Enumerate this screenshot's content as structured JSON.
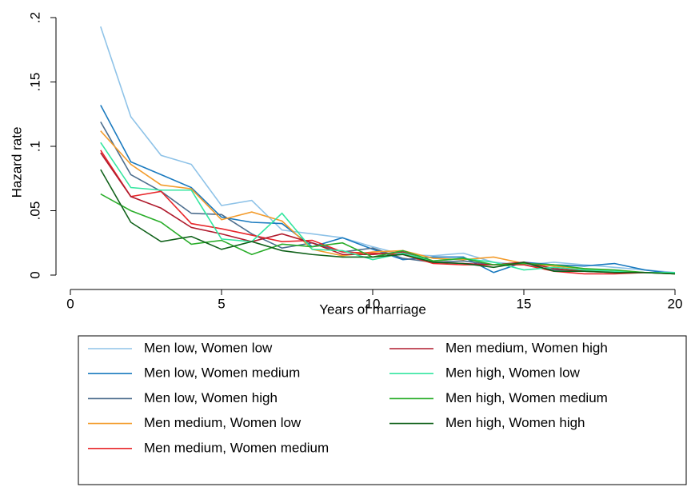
{
  "chart_data": {
    "type": "line",
    "x_label": "Years of marriage",
    "y_label": "Hazard rate",
    "x": [
      1,
      2,
      3,
      4,
      5,
      6,
      7,
      8,
      9,
      10,
      11,
      12,
      13,
      14,
      15,
      16,
      17,
      18,
      19,
      20
    ],
    "xlim": [
      0,
      20
    ],
    "xticks": [
      0,
      5,
      10,
      15,
      20
    ],
    "ylim": [
      0,
      0.2
    ],
    "yticks": [
      0,
      {
        "value": 0.05,
        "label": ".05"
      },
      {
        "value": 0.1,
        "label": ".1"
      },
      {
        "value": 0.15,
        "label": ".15"
      },
      {
        "value": 0.2,
        "label": ".2"
      }
    ],
    "series": [
      {
        "name": "Men low, Women low",
        "color": "#8fc3e8",
        "values": [
          0.193,
          0.123,
          0.093,
          0.086,
          0.054,
          0.058,
          0.035,
          0.032,
          0.029,
          0.022,
          0.016,
          0.015,
          0.017,
          0.01,
          0.008,
          0.01,
          0.008,
          0.006,
          0.004,
          0.002
        ]
      },
      {
        "name": "Men low, Women medium",
        "color": "#1a7abf",
        "values": [
          0.132,
          0.088,
          0.078,
          0.068,
          0.045,
          0.041,
          0.04,
          0.022,
          0.029,
          0.02,
          0.012,
          0.014,
          0.014,
          0.002,
          0.01,
          0.008,
          0.007,
          0.009,
          0.004,
          0.001
        ]
      },
      {
        "name": "Men low, Women high",
        "color": "#4d6e8e",
        "values": [
          0.119,
          0.078,
          0.065,
          0.048,
          0.047,
          0.032,
          0.021,
          0.025,
          0.018,
          0.021,
          0.013,
          0.01,
          0.011,
          0.008,
          0.008,
          0.004,
          0.004,
          0.003,
          0.002,
          0.002
        ]
      },
      {
        "name": "Men medium, Women low",
        "color": "#f39c2c",
        "values": [
          0.112,
          0.086,
          0.07,
          0.067,
          0.043,
          0.049,
          0.042,
          0.02,
          0.015,
          0.018,
          0.019,
          0.013,
          0.012,
          0.014,
          0.009,
          0.007,
          0.005,
          0.003,
          0.002,
          0.001
        ]
      },
      {
        "name": "Men medium, Women medium",
        "color": "#e8272b",
        "values": [
          0.097,
          0.061,
          0.065,
          0.04,
          0.036,
          0.031,
          0.026,
          0.027,
          0.018,
          0.017,
          0.016,
          0.009,
          0.008,
          0.008,
          0.008,
          0.003,
          0.001,
          0.001,
          0.002,
          0.002
        ]
      },
      {
        "name": "Men medium, Women high",
        "color": "#b01c2e",
        "values": [
          0.095,
          0.061,
          0.052,
          0.037,
          0.032,
          0.026,
          0.032,
          0.025,
          0.016,
          0.016,
          0.018,
          0.01,
          0.009,
          0.008,
          0.01,
          0.005,
          0.003,
          0.002,
          0.002,
          0.002
        ]
      },
      {
        "name": "Men high, Women low",
        "color": "#35e6a0",
        "values": [
          0.103,
          0.068,
          0.066,
          0.066,
          0.028,
          0.026,
          0.048,
          0.02,
          0.019,
          0.012,
          0.017,
          0.011,
          0.013,
          0.01,
          0.004,
          0.006,
          0.004,
          0.003,
          0.002,
          0.002
        ]
      },
      {
        "name": "Men high, Women medium",
        "color": "#2cae2c",
        "values": [
          0.063,
          0.05,
          0.041,
          0.024,
          0.027,
          0.016,
          0.024,
          0.022,
          0.025,
          0.014,
          0.019,
          0.011,
          0.013,
          0.008,
          0.009,
          0.008,
          0.005,
          0.004,
          0.002,
          0.001
        ]
      },
      {
        "name": "Men high, Women high",
        "color": "#11621b",
        "values": [
          0.082,
          0.041,
          0.026,
          0.03,
          0.02,
          0.026,
          0.019,
          0.016,
          0.014,
          0.014,
          0.016,
          0.01,
          0.009,
          0.006,
          0.01,
          0.003,
          0.003,
          0.002,
          0.002,
          0.001
        ]
      }
    ]
  }
}
